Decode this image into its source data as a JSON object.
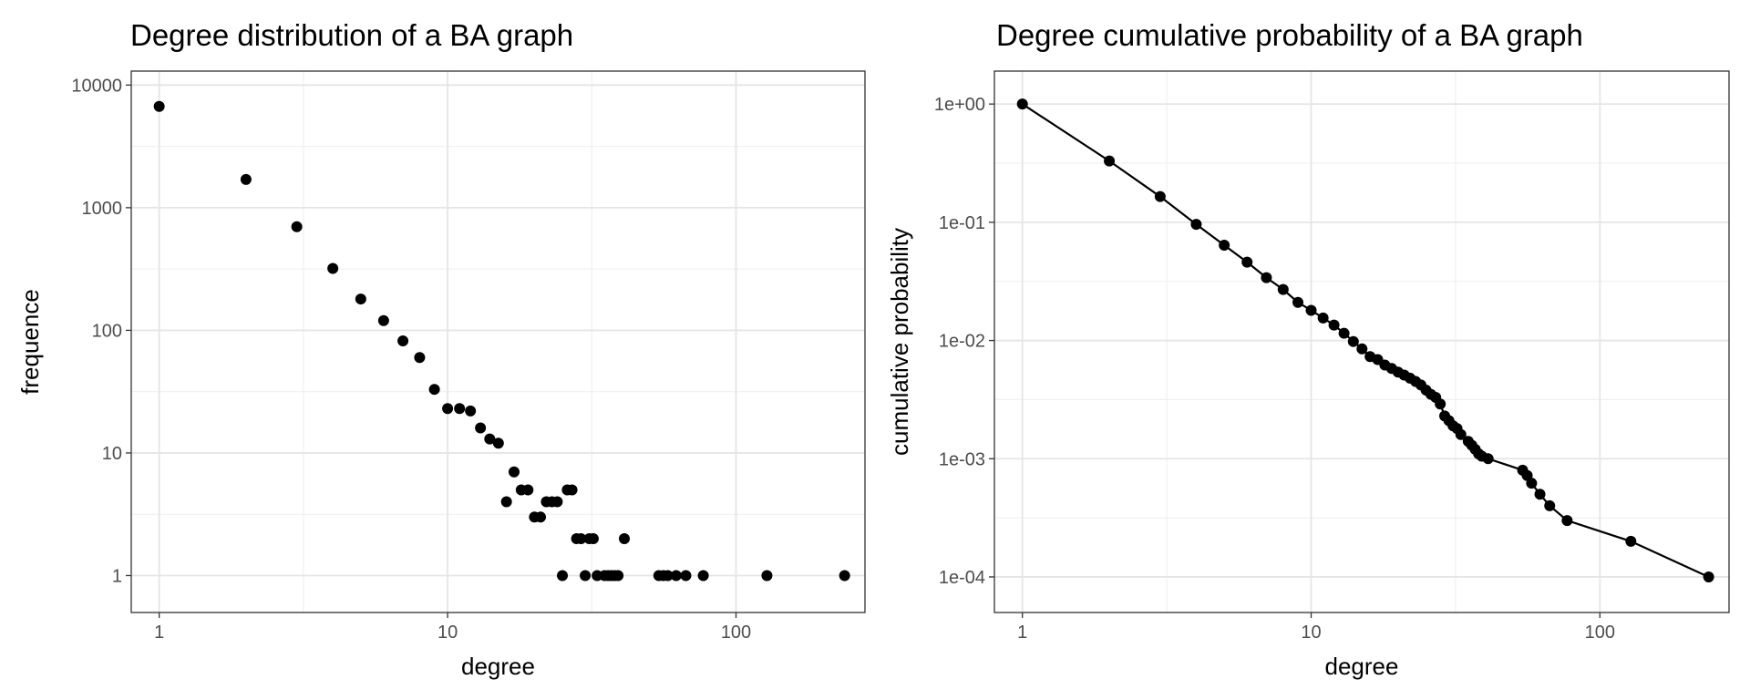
{
  "chart_data": [
    {
      "type": "scatter",
      "title": "Degree distribution of a BA graph",
      "xlabel": "degree",
      "ylabel": "frequence",
      "xscale": "log10",
      "yscale": "log10",
      "xlim": [
        0.8,
        280
      ],
      "ylim": [
        0.5,
        13000
      ],
      "grid": true,
      "legend": "none",
      "xticks": [
        1,
        10,
        100
      ],
      "xtick_labels": [
        "1",
        "10",
        "100"
      ],
      "yticks": [
        1,
        10,
        100,
        1000,
        10000
      ],
      "ytick_labels": [
        "1",
        "10",
        "100",
        "1000",
        "10000"
      ],
      "series": [
        {
          "x": [
            1,
            2,
            3,
            4,
            5,
            6,
            7,
            8,
            9,
            10,
            11,
            12,
            13,
            14,
            15,
            16,
            17,
            18,
            19,
            20,
            21,
            22,
            23,
            24,
            25,
            26,
            27,
            28,
            29,
            30,
            31,
            32,
            33,
            35,
            36,
            37,
            38,
            39,
            41,
            54,
            56,
            58,
            62,
            67,
            77,
            128,
            238
          ],
          "y": [
            6700,
            1700,
            700,
            320,
            180,
            120,
            82,
            60,
            33,
            23,
            23,
            22,
            16,
            13,
            12,
            4,
            7,
            5,
            5,
            3,
            3,
            4,
            4,
            4,
            1,
            5,
            5,
            2,
            2,
            1,
            2,
            2,
            1,
            1,
            1,
            1,
            1,
            1,
            2,
            1,
            1,
            1,
            1,
            1,
            1,
            1,
            1
          ]
        }
      ]
    },
    {
      "type": "line",
      "title": "Degree cumulative probability of a BA graph",
      "xlabel": "degree",
      "ylabel": "cumulative probability",
      "xscale": "log10",
      "yscale": "log10",
      "xlim": [
        0.8,
        280
      ],
      "ylim": [
        5e-05,
        1.9
      ],
      "grid": true,
      "legend": "none",
      "markers": true,
      "xticks": [
        1,
        10,
        100
      ],
      "xtick_labels": [
        "1",
        "10",
        "100"
      ],
      "yticks": [
        1,
        0.1,
        0.01,
        0.001,
        0.0001
      ],
      "ytick_labels": [
        "1e+00",
        "1e-01",
        "1e-02",
        "1e-03",
        "1e-04"
      ],
      "series": [
        {
          "x": [
            1,
            2,
            3,
            4,
            5,
            6,
            7,
            8,
            9,
            10,
            11,
            12,
            13,
            14,
            15,
            16,
            17,
            18,
            19,
            20,
            21,
            22,
            23,
            24,
            25,
            26,
            27,
            28,
            29,
            30,
            31,
            32,
            33,
            35,
            36,
            37,
            38,
            39,
            41,
            54,
            56,
            58,
            62,
            67,
            77,
            128,
            238
          ],
          "y": [
            1,
            0.33,
            0.165,
            0.096,
            0.064,
            0.046,
            0.034,
            0.027,
            0.021,
            0.018,
            0.0155,
            0.0135,
            0.0115,
            0.0098,
            0.0085,
            0.0073,
            0.0069,
            0.0062,
            0.0058,
            0.0054,
            0.0051,
            0.0048,
            0.0045,
            0.0042,
            0.0038,
            0.0035,
            0.0033,
            0.0029,
            0.0023,
            0.0021,
            0.0019,
            0.0018,
            0.0016,
            0.0014,
            0.0013,
            0.0012,
            0.0011,
            0.00105,
            0.001,
            0.0008,
            0.00072,
            0.00062,
            0.0005,
            0.0004,
            0.0003,
            0.0002,
            0.0001
          ]
        }
      ]
    }
  ]
}
